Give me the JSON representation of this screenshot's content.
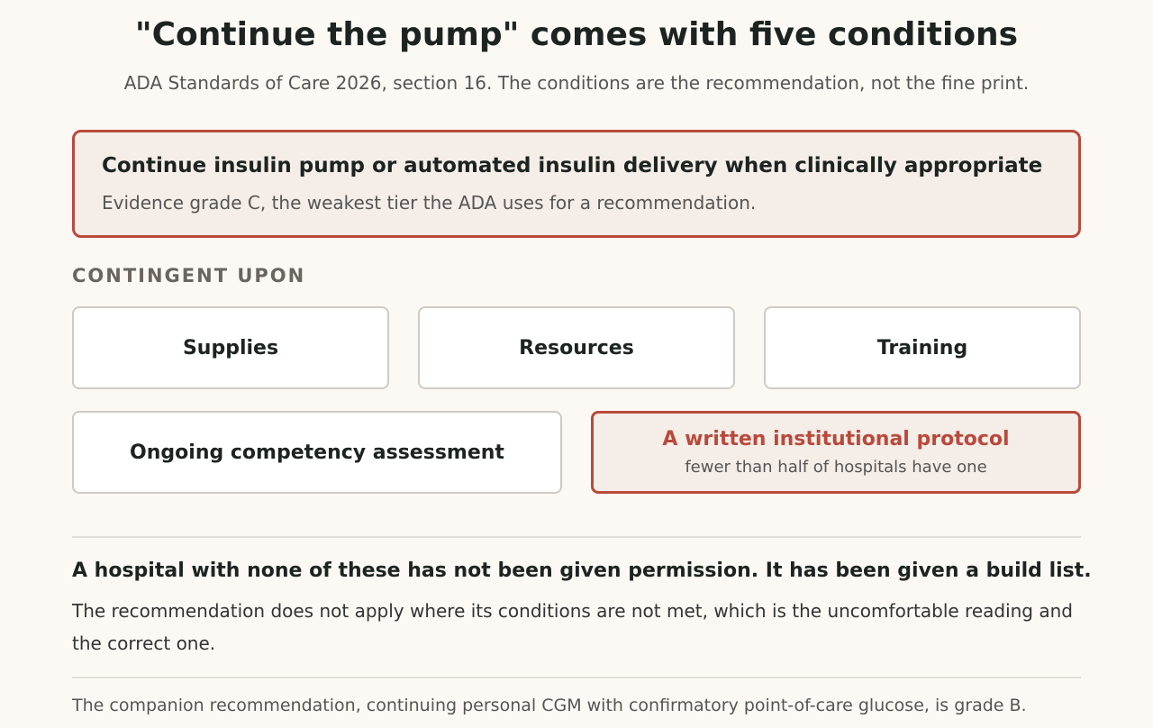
{
  "header": {
    "title": "\"Continue the pump\" comes with five conditions",
    "subtitle": "ADA Standards of Care 2026, section 16. The conditions are the recommendation, not the fine print."
  },
  "recommendation": {
    "title": "Continue insulin pump or automated insulin delivery when clinically appropriate",
    "note": "Evidence grade C, the weakest tier the ADA uses for a recommendation."
  },
  "conditions": {
    "label": "CONTINGENT UPON",
    "items": [
      {
        "label": "Supplies"
      },
      {
        "label": "Resources"
      },
      {
        "label": "Training"
      },
      {
        "label": "Ongoing competency assessment"
      },
      {
        "label": "A written institutional protocol",
        "note": "fewer than half of hospitals have one"
      }
    ]
  },
  "takeaway": {
    "headline": "A hospital with none of these has not been given permission. It has been given a build list.",
    "body": "The recommendation does not apply where its conditions are not met, which is the uncomfortable reading and the correct one."
  },
  "footnote": "The companion recommendation, continuing personal CGM with confirmatory point-of-care glucose, is grade B."
}
